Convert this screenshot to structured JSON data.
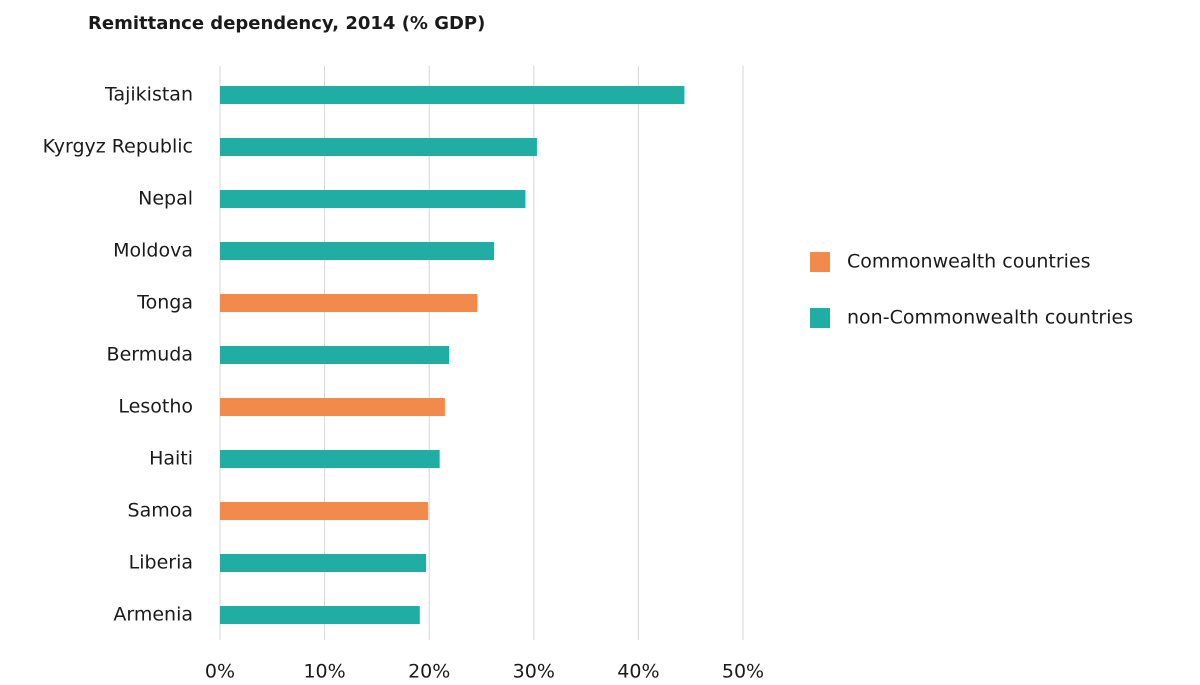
{
  "chart_data": {
    "type": "hbar",
    "title": "Remittance dependency, 2014 (% GDP)",
    "categories": [
      "Tajikistan",
      "Kyrgyz Republic",
      "Nepal",
      "Moldova",
      "Tonga",
      "Bermuda",
      "Lesotho",
      "Haiti",
      "Samoa",
      "Liberia",
      "Armenia"
    ],
    "series": [
      {
        "name": "Commonwealth countries",
        "color": "#f28a4b",
        "values": [
          null,
          null,
          null,
          null,
          24.6,
          null,
          21.5,
          null,
          19.9,
          null,
          null
        ]
      },
      {
        "name": "non-Commonwealth countries",
        "color": "#1fada4",
        "values": [
          44.4,
          30.3,
          29.2,
          26.2,
          null,
          21.9,
          null,
          21.0,
          null,
          19.7,
          19.1
        ]
      }
    ],
    "xlim": [
      0,
      50
    ],
    "xticks": [
      {
        "value": 0,
        "label": "0%"
      },
      {
        "value": 10,
        "label": "10%"
      },
      {
        "value": 20,
        "label": "20%"
      },
      {
        "value": 30,
        "label": "30%"
      },
      {
        "value": 40,
        "label": "40%"
      },
      {
        "value": 50,
        "label": "50%"
      }
    ],
    "grid": true,
    "legend": "right"
  }
}
